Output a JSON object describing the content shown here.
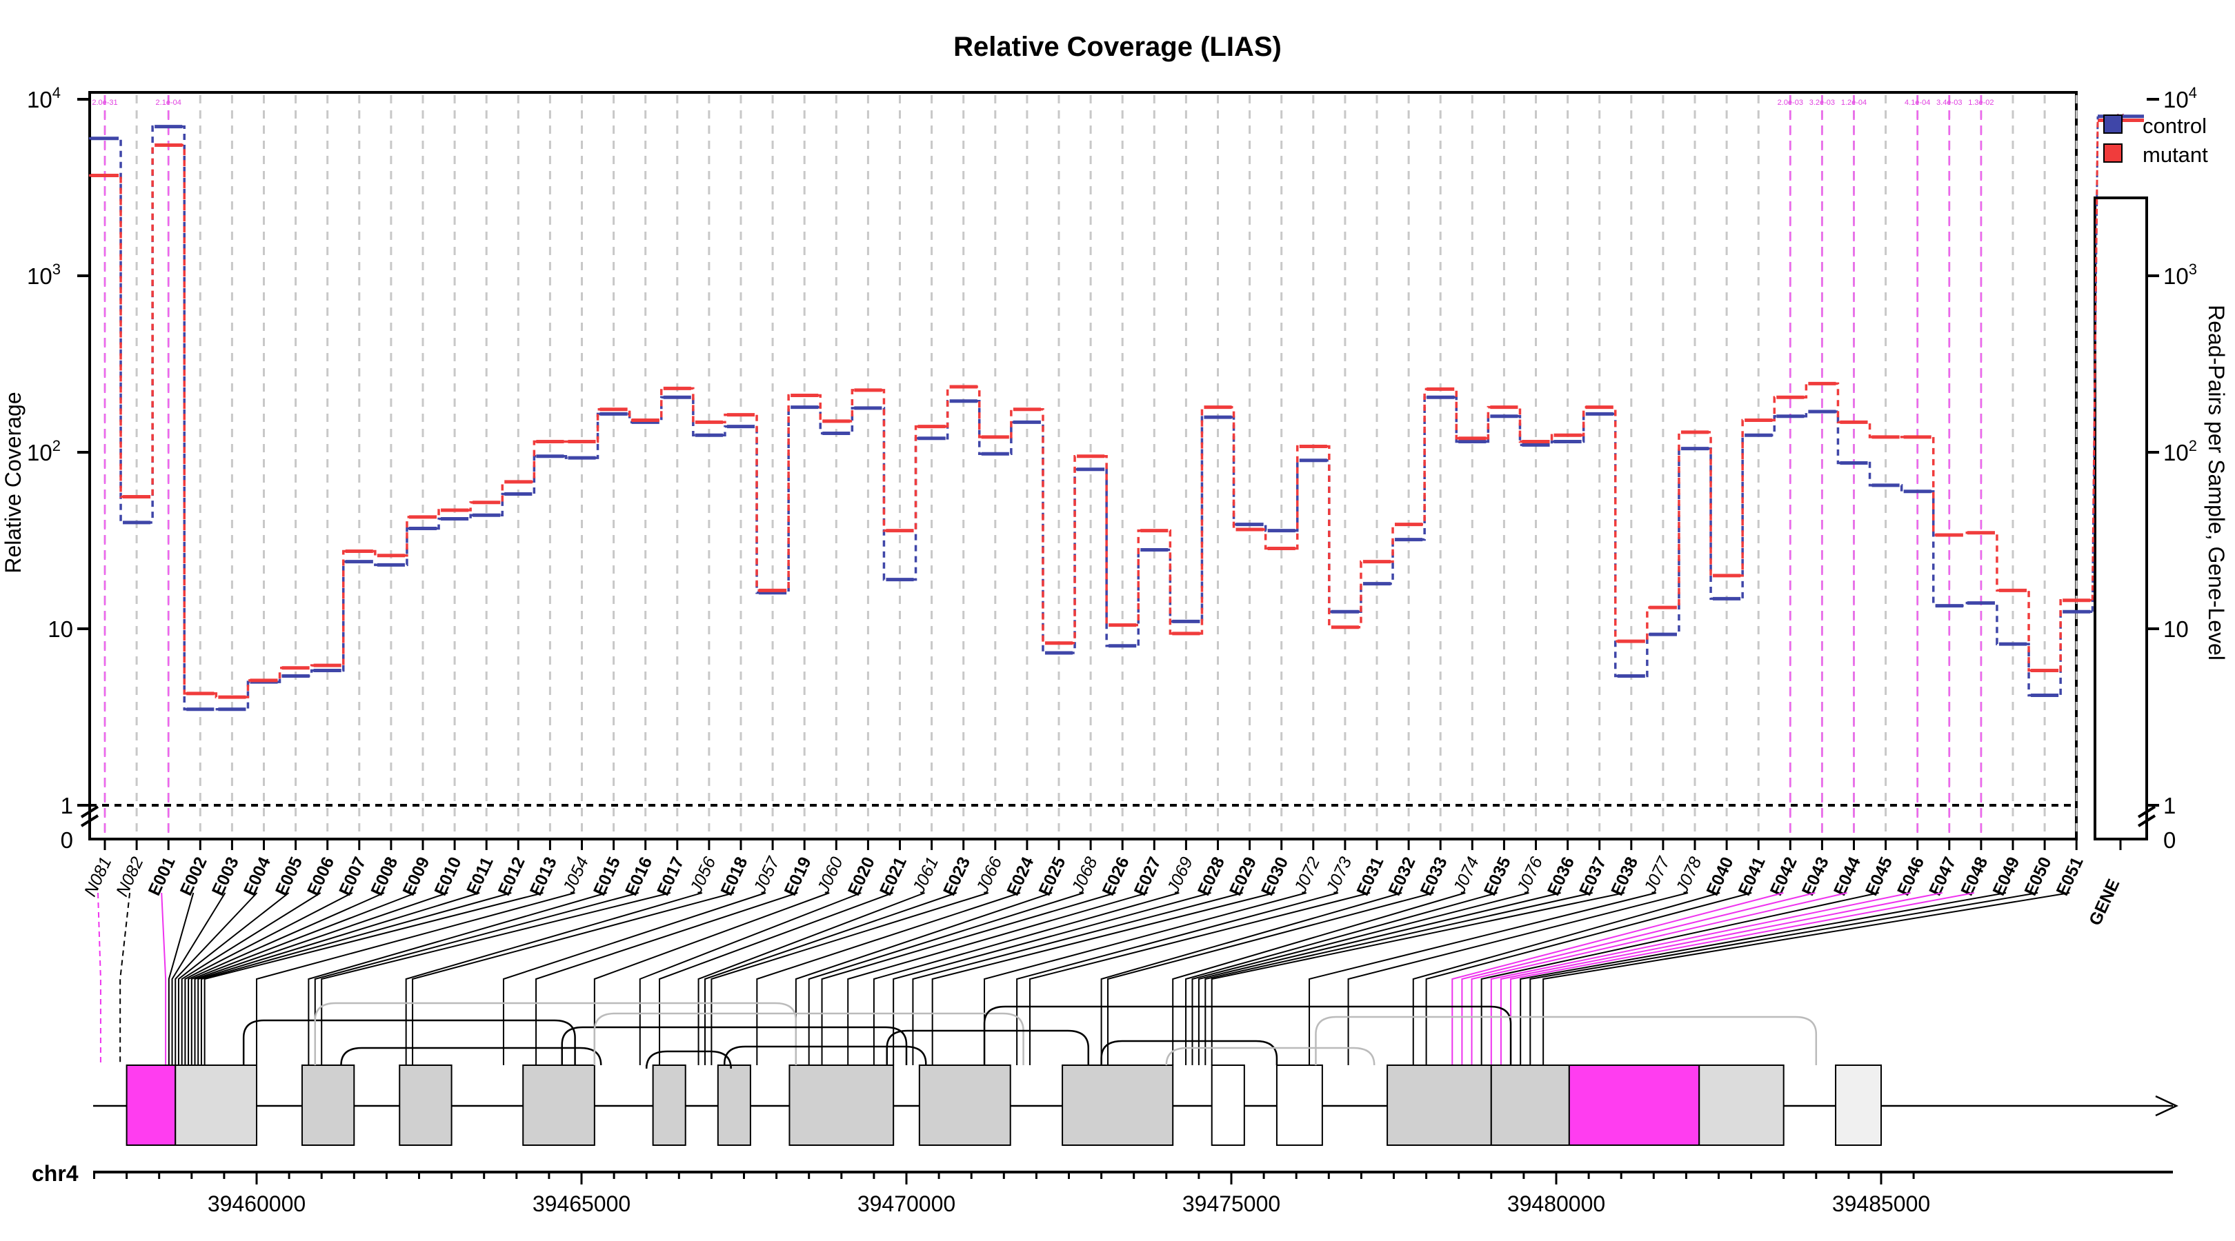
{
  "title": "Relative Coverage (LIAS)",
  "y_axis_left": {
    "label": "Relative Coverage",
    "ticks": [
      {
        "value": 1,
        "base": "1",
        "exp": ""
      },
      {
        "value": 10,
        "base": "10",
        "exp": ""
      },
      {
        "value": 100,
        "base": "10",
        "exp": "2"
      },
      {
        "value": 1000,
        "base": "10",
        "exp": "3"
      },
      {
        "value": 10000,
        "base": "10",
        "exp": "4"
      }
    ],
    "zero_label": "0"
  },
  "y_axis_right": {
    "label": "Read-Pairs per Sample, Gene-Level",
    "ticks": [
      {
        "value": 1,
        "base": "1",
        "exp": ""
      },
      {
        "value": 10,
        "base": "10",
        "exp": ""
      },
      {
        "value": 100,
        "base": "10",
        "exp": "2"
      },
      {
        "value": 1000,
        "base": "10",
        "exp": "3"
      },
      {
        "value": 10000,
        "base": "10",
        "exp": "4"
      }
    ],
    "zero_label": "0"
  },
  "legend": [
    {
      "label": "control",
      "color": "#3f46a8"
    },
    {
      "label": "mutant",
      "color": "#f03c3c"
    }
  ],
  "pvalue_labels": [
    "2.0e-31",
    "2.1e-04",
    "2.0e-03",
    "3.2e-03",
    "1.2e-04",
    "4.1e-04",
    "3.4e-03",
    "1.3e-02"
  ],
  "chart_data": {
    "type": "line",
    "y_scale": "log",
    "ylim": [
      1,
      10000
    ],
    "title": "Relative Coverage (LIAS)",
    "ylabel": "Relative Coverage",
    "y2label": "Read-Pairs per Sample, Gene-Level",
    "features": [
      "N081",
      "N082",
      "E001",
      "E002",
      "E003",
      "E004",
      "E005",
      "E006",
      "E007",
      "E008",
      "E009",
      "E010",
      "E011",
      "E012",
      "E013",
      "J054",
      "E015",
      "E016",
      "E017",
      "J056",
      "E018",
      "J057",
      "E019",
      "J060",
      "E020",
      "E021",
      "J061",
      "E023",
      "J066",
      "E024",
      "E025",
      "J068",
      "E026",
      "E027",
      "J069",
      "E028",
      "E029",
      "E030",
      "J072",
      "J073",
      "E031",
      "E032",
      "E033",
      "J074",
      "E035",
      "J076",
      "E036",
      "E037",
      "E038",
      "J077",
      "J078",
      "E040",
      "E041",
      "E042",
      "E043",
      "E044",
      "E045",
      "E046",
      "E047",
      "E048",
      "E049",
      "E050",
      "E051"
    ],
    "significant": [
      "N081",
      "E001",
      "E042",
      "E043",
      "E044",
      "E046",
      "E047",
      "E048"
    ],
    "series": [
      {
        "name": "control",
        "color": "#3f46a8",
        "values": [
          6000,
          40,
          7000,
          3.5,
          3.5,
          5,
          5.4,
          5.8,
          24,
          23,
          37,
          42,
          44,
          58,
          95,
          93,
          165,
          148,
          205,
          125,
          140,
          16,
          180,
          128,
          178,
          19,
          120,
          195,
          98,
          148,
          7.3,
          80,
          8,
          28,
          11,
          158,
          39,
          36,
          90,
          12.5,
          18,
          32,
          205,
          115,
          160,
          110,
          115,
          165,
          5.4,
          9.3,
          105,
          14.8,
          125,
          160,
          170,
          87,
          65,
          60,
          13.5,
          14,
          8.2,
          4.2,
          12.5
        ]
      },
      {
        "name": "mutant",
        "color": "#f03c3c",
        "values": [
          3700,
          56,
          5500,
          4.3,
          4.1,
          5.1,
          6,
          6.2,
          27.5,
          26,
          43,
          47,
          52,
          68,
          115,
          115,
          175,
          152,
          230,
          148,
          163,
          16.5,
          210,
          150,
          225,
          36,
          140,
          235,
          122,
          175,
          8.3,
          95,
          10.5,
          36,
          9.4,
          180,
          36.5,
          28.5,
          108,
          10.2,
          24,
          39,
          228,
          120,
          180,
          115,
          125,
          180,
          8.5,
          13.2,
          130,
          20,
          152,
          205,
          245,
          148,
          122,
          122,
          34,
          35,
          16.5,
          5.8,
          14.5
        ]
      }
    ],
    "gene_level": {
      "label": "GENE",
      "control": 8000,
      "mutant": 7600
    }
  },
  "gene_track": {
    "chromosome": "chr4",
    "coordinates": [
      "39460000",
      "39465000",
      "39470000",
      "39475000",
      "39480000",
      "39485000"
    ]
  }
}
